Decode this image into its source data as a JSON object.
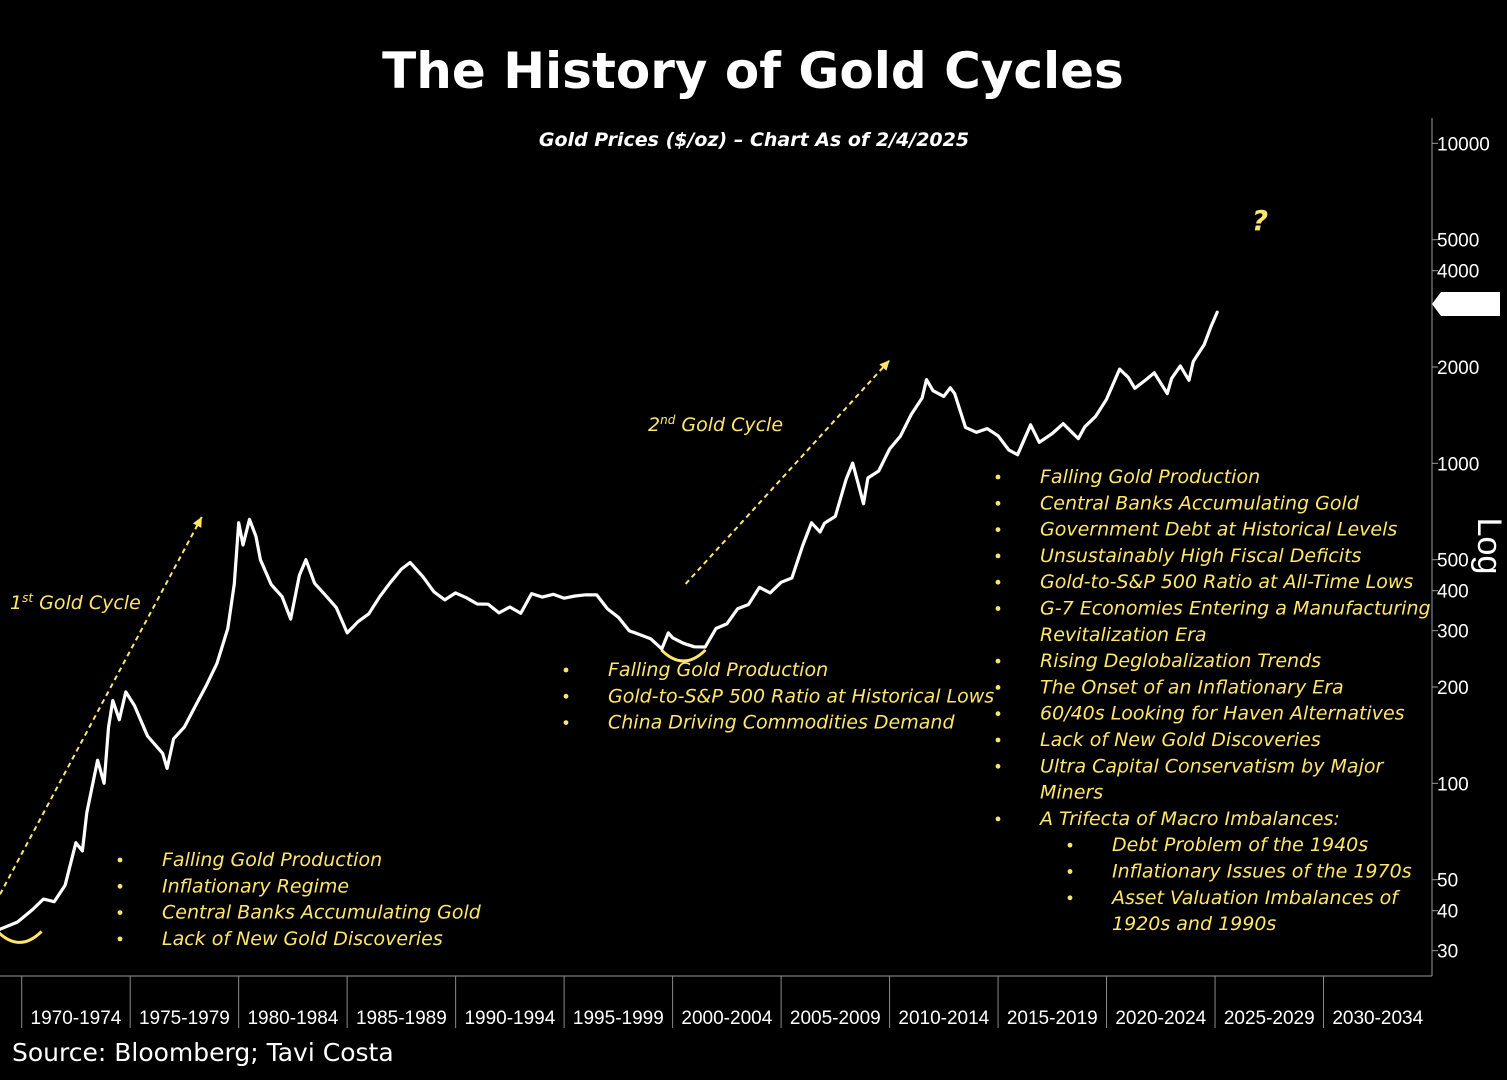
{
  "chart_data": {
    "type": "line",
    "title": "The History of Gold Cycles",
    "subtitle": "Gold Prices ($/oz) – Chart As of 2/4/2025",
    "source": "Source: Bloomberg; Tavi Costa",
    "y_scale": "log",
    "y_axis_label": "Log",
    "ylim": [
      25,
      12000
    ],
    "xlim": [
      1969,
      2035
    ],
    "ytick_labels": [
      "10000",
      "5000",
      "4000",
      "2000",
      "1000",
      "500",
      "400",
      "300",
      "200",
      "100",
      "50",
      "40",
      "30"
    ],
    "x_categories": [
      "1970-1974",
      "1975-1979",
      "1980-1984",
      "1985-1989",
      "1990-1994",
      "1995-1999",
      "2000-2004",
      "2005-2009",
      "2010-2014",
      "2015-2019",
      "2020-2024",
      "2025-2029",
      "2030-2034"
    ],
    "last_value_label": "2991",
    "last_value": 2991,
    "series": [
      {
        "name": "",
        "color": "#ffffff",
        "points": [
          [
            1969.0,
            35
          ],
          [
            1969.8,
            37
          ],
          [
            1970.5,
            40
          ],
          [
            1971.0,
            44
          ],
          [
            1971.5,
            42
          ],
          [
            1972.0,
            48
          ],
          [
            1972.5,
            65
          ],
          [
            1972.8,
            62
          ],
          [
            1973.0,
            80
          ],
          [
            1973.5,
            120
          ],
          [
            1973.8,
            100
          ],
          [
            1974.0,
            150
          ],
          [
            1974.2,
            180
          ],
          [
            1974.5,
            160
          ],
          [
            1974.8,
            190
          ],
          [
            1975.2,
            175
          ],
          [
            1975.8,
            140
          ],
          [
            1976.5,
            125
          ],
          [
            1976.7,
            110
          ],
          [
            1977.0,
            140
          ],
          [
            1977.5,
            150
          ],
          [
            1978.0,
            175
          ],
          [
            1978.5,
            200
          ],
          [
            1979.0,
            240
          ],
          [
            1979.5,
            300
          ],
          [
            1979.8,
            420
          ],
          [
            1980.0,
            650
          ],
          [
            1980.2,
            560
          ],
          [
            1980.5,
            660
          ],
          [
            1980.8,
            600
          ],
          [
            1981.0,
            500
          ],
          [
            1981.5,
            420
          ],
          [
            1982.0,
            380
          ],
          [
            1982.4,
            330
          ],
          [
            1982.8,
            440
          ],
          [
            1983.1,
            500
          ],
          [
            1983.5,
            420
          ],
          [
            1984.0,
            390
          ],
          [
            1984.5,
            350
          ],
          [
            1985.0,
            300
          ],
          [
            1985.5,
            320
          ],
          [
            1986.0,
            340
          ],
          [
            1986.5,
            380
          ],
          [
            1987.0,
            430
          ],
          [
            1987.5,
            460
          ],
          [
            1987.9,
            490
          ],
          [
            1988.5,
            440
          ],
          [
            1989.0,
            400
          ],
          [
            1989.5,
            370
          ],
          [
            1990.0,
            400
          ],
          [
            1990.5,
            380
          ],
          [
            1991.0,
            365
          ],
          [
            1991.5,
            360
          ],
          [
            1992.0,
            345
          ],
          [
            1992.5,
            350
          ],
          [
            1993.0,
            340
          ],
          [
            1993.5,
            390
          ],
          [
            1994.0,
            385
          ],
          [
            1994.5,
            385
          ],
          [
            1995.0,
            385
          ],
          [
            1995.5,
            385
          ],
          [
            1996.0,
            390
          ],
          [
            1996.5,
            385
          ],
          [
            1997.0,
            355
          ],
          [
            1997.5,
            325
          ],
          [
            1998.0,
            300
          ],
          [
            1998.5,
            290
          ],
          [
            1999.0,
            285
          ],
          [
            1999.5,
            260
          ],
          [
            1999.8,
            300
          ],
          [
            2000.0,
            285
          ],
          [
            2000.5,
            275
          ],
          [
            2001.0,
            265
          ],
          [
            2001.5,
            270
          ],
          [
            2002.0,
            300
          ],
          [
            2002.5,
            315
          ],
          [
            2003.0,
            350
          ],
          [
            2003.5,
            365
          ],
          [
            2004.0,
            405
          ],
          [
            2004.5,
            400
          ],
          [
            2005.0,
            425
          ],
          [
            2005.5,
            440
          ],
          [
            2006.0,
            550
          ],
          [
            2006.4,
            660
          ],
          [
            2006.8,
            600
          ],
          [
            2007.0,
            650
          ],
          [
            2007.5,
            680
          ],
          [
            2008.0,
            900
          ],
          [
            2008.3,
            990
          ],
          [
            2008.8,
            760
          ],
          [
            2009.0,
            900
          ],
          [
            2009.5,
            950
          ],
          [
            2010.0,
            1100
          ],
          [
            2010.5,
            1230
          ],
          [
            2011.0,
            1400
          ],
          [
            2011.5,
            1600
          ],
          [
            2011.7,
            1820
          ],
          [
            2012.0,
            1700
          ],
          [
            2012.5,
            1600
          ],
          [
            2012.8,
            1750
          ],
          [
            2013.0,
            1650
          ],
          [
            2013.5,
            1300
          ],
          [
            2014.0,
            1240
          ],
          [
            2014.5,
            1300
          ],
          [
            2015.0,
            1200
          ],
          [
            2015.5,
            1100
          ],
          [
            2015.9,
            1060
          ],
          [
            2016.5,
            1330
          ],
          [
            2016.9,
            1150
          ],
          [
            2017.5,
            1260
          ],
          [
            2018.0,
            1330
          ],
          [
            2018.7,
            1200
          ],
          [
            2019.0,
            1290
          ],
          [
            2019.5,
            1420
          ],
          [
            2020.0,
            1560
          ],
          [
            2020.6,
            1970
          ],
          [
            2021.0,
            1850
          ],
          [
            2021.3,
            1730
          ],
          [
            2021.8,
            1800
          ],
          [
            2022.2,
            1950
          ],
          [
            2022.8,
            1650
          ],
          [
            2023.0,
            1850
          ],
          [
            2023.4,
            2000
          ],
          [
            2023.8,
            1840
          ],
          [
            2024.0,
            2050
          ],
          [
            2024.5,
            2350
          ],
          [
            2024.8,
            2650
          ],
          [
            2025.1,
            2991
          ]
        ]
      }
    ],
    "cycle_arrows": [
      {
        "label": "1st Gold Cycle",
        "from": [
          1969.0,
          45
        ],
        "to": [
          1978.3,
          680
        ]
      },
      {
        "label": "2nd Gold Cycle",
        "from": [
          2000.6,
          420
        ],
        "to": [
          2010.0,
          2100
        ]
      }
    ],
    "question_mark": "?",
    "bottom_markers": [
      [
        1969.9,
        33
      ],
      [
        2000.5,
        250
      ]
    ],
    "annotations": [
      {
        "items": [
          {
            "level": 1,
            "text": "Falling Gold Production"
          },
          {
            "level": 1,
            "text": "Inflationary Regime"
          },
          {
            "level": 1,
            "text": "Central Banks Accumulating Gold"
          },
          {
            "level": 1,
            "text": "Lack of New Gold Discoveries"
          }
        ]
      },
      {
        "items": [
          {
            "level": 1,
            "text": "Falling Gold Production"
          },
          {
            "level": 1,
            "text": "Gold-to-S&P 500 Ratio at Historical Lows"
          },
          {
            "level": 1,
            "text": "China Driving Commodities Demand"
          }
        ]
      },
      {
        "items": [
          {
            "level": 1,
            "text": "Falling Gold Production"
          },
          {
            "level": 1,
            "text": "Central Banks Accumulating Gold"
          },
          {
            "level": 1,
            "text": "Government Debt at Historical Levels"
          },
          {
            "level": 1,
            "text": "Unsustainably High Fiscal Deficits"
          },
          {
            "level": 1,
            "text": "Gold-to-S&P 500 Ratio at All-Time Lows"
          },
          {
            "level": 1,
            "text": "G-7 Economies Entering a Manufacturing"
          },
          {
            "level": 0,
            "text": "Revitalization Era"
          },
          {
            "level": 1,
            "text": "Rising Deglobalization Trends"
          },
          {
            "level": 1,
            "text": "The Onset of an Inflationary Era"
          },
          {
            "level": 1,
            "text": "60/40s Looking for Haven Alternatives"
          },
          {
            "level": 1,
            "text": "Lack of New Gold Discoveries"
          },
          {
            "level": 1,
            "text": "Ultra Capital Conservatism by Major"
          },
          {
            "level": 0,
            "text": "Miners"
          },
          {
            "level": 1,
            "text": "A Trifecta of Macro Imbalances:"
          },
          {
            "level": 2,
            "text": "Debt Problem of the 1940s"
          },
          {
            "level": 2,
            "text": "Inflationary Issues of the 1970s"
          },
          {
            "level": 2,
            "text": "Asset Valuation Imbalances of"
          },
          {
            "level": 0,
            "text": "1920s and 1990s"
          }
        ]
      }
    ],
    "colors": {
      "background": "#000000",
      "line": "#ffffff",
      "annotation": "#ffe66a"
    }
  }
}
